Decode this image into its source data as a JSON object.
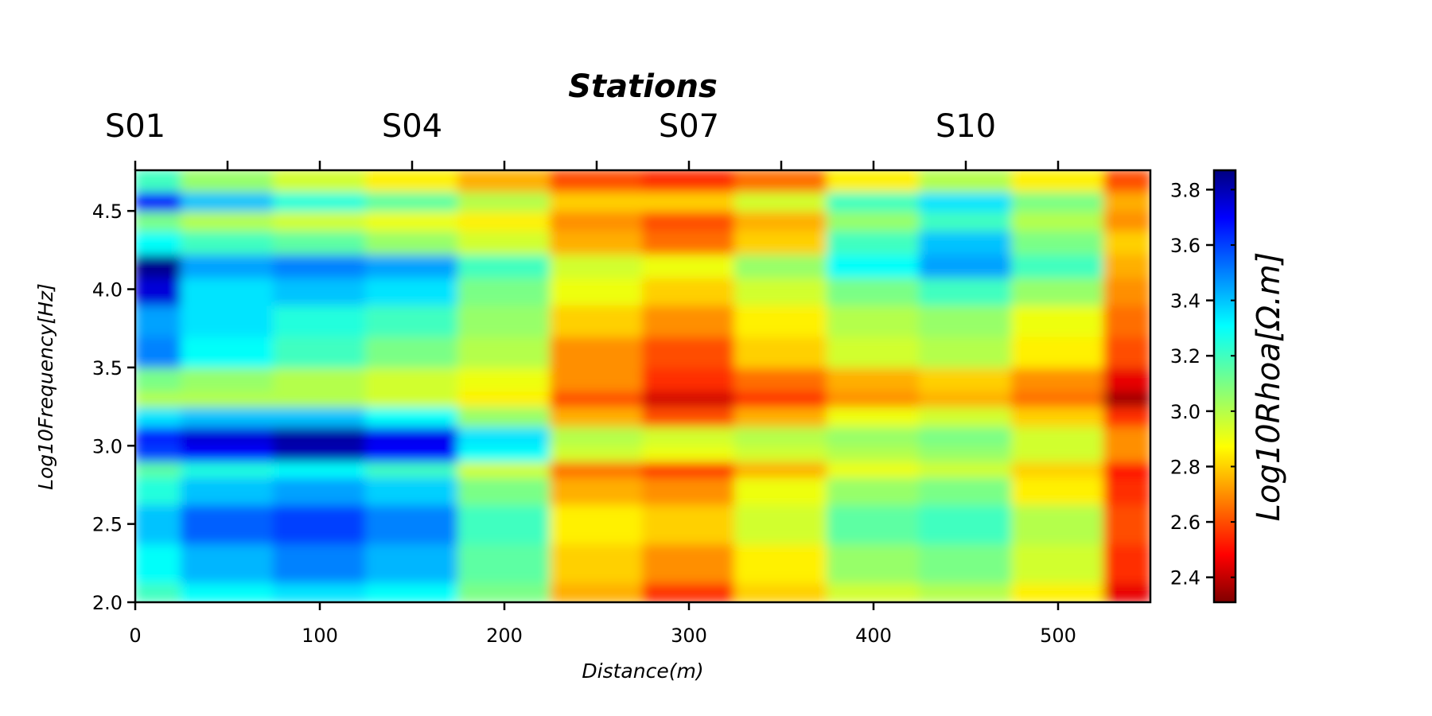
{
  "chart_data": {
    "type": "heatmap",
    "title": "Stations",
    "xlabel": "Distance(m)",
    "ylabel": "Log10Frequency[Hz]",
    "colorbar_label": "Log10Rhoa[Ω.m]",
    "xlim": [
      0,
      550
    ],
    "ylim": [
      2.0,
      4.76
    ],
    "clim": [
      2.31,
      3.87
    ],
    "colormap": "jet_reversed",
    "x_ticks": [
      0,
      100,
      200,
      300,
      400,
      500
    ],
    "y_ticks": [
      2.0,
      2.5,
      3.0,
      3.5,
      4.0,
      4.5
    ],
    "colorbar_ticks": [
      2.4,
      2.6,
      2.8,
      3.0,
      3.2,
      3.4,
      3.6,
      3.8
    ],
    "stations": [
      {
        "label": "S01",
        "x": 0
      },
      {
        "label": "S04",
        "x": 150
      },
      {
        "label": "S07",
        "x": 300
      },
      {
        "label": "S10",
        "x": 450
      }
    ],
    "station_ticks": [
      0,
      50,
      100,
      150,
      200,
      250,
      300,
      350,
      400,
      450,
      500
    ],
    "x": [
      0,
      50,
      100,
      150,
      200,
      250,
      300,
      350,
      400,
      450,
      500,
      550
    ],
    "y": [
      2.0,
      2.25,
      2.5,
      2.75,
      2.85,
      2.95,
      3.05,
      3.2,
      3.3,
      3.4,
      3.6,
      3.8,
      4.0,
      4.15,
      4.3,
      4.45,
      4.55,
      4.7
    ],
    "values": [
      [
        3.2,
        3.3,
        3.35,
        3.3,
        3.1,
        2.75,
        2.55,
        2.8,
        2.95,
        3.0,
        2.85,
        2.45
      ],
      [
        3.3,
        3.42,
        3.5,
        3.42,
        3.15,
        2.8,
        2.7,
        2.85,
        3.05,
        3.1,
        2.95,
        2.55
      ],
      [
        3.4,
        3.55,
        3.6,
        3.5,
        3.2,
        2.85,
        2.8,
        2.95,
        3.15,
        3.2,
        3.0,
        2.6
      ],
      [
        3.25,
        3.4,
        3.45,
        3.38,
        3.1,
        2.75,
        2.7,
        2.9,
        3.05,
        3.1,
        2.85,
        2.55
      ],
      [
        3.15,
        3.25,
        3.3,
        3.2,
        2.95,
        2.65,
        2.55,
        2.75,
        2.9,
        2.95,
        2.8,
        2.5
      ],
      [
        3.6,
        3.7,
        3.8,
        3.7,
        3.3,
        2.95,
        2.9,
        2.95,
        3.0,
        3.05,
        2.95,
        2.7
      ],
      [
        3.65,
        3.75,
        3.82,
        3.72,
        3.35,
        3.0,
        2.95,
        3.0,
        3.05,
        3.1,
        2.95,
        2.7
      ],
      [
        3.35,
        3.4,
        3.4,
        3.3,
        3.05,
        2.75,
        2.6,
        2.75,
        2.9,
        2.95,
        2.8,
        2.55
      ],
      [
        3.0,
        3.0,
        3.0,
        2.95,
        2.85,
        2.6,
        2.42,
        2.55,
        2.7,
        2.75,
        2.65,
        2.35
      ],
      [
        3.1,
        3.05,
        3.0,
        2.95,
        2.9,
        2.7,
        2.55,
        2.65,
        2.75,
        2.8,
        2.7,
        2.45
      ],
      [
        3.5,
        3.3,
        3.2,
        3.1,
        3.0,
        2.7,
        2.6,
        2.8,
        2.95,
        3.0,
        2.85,
        2.6
      ],
      [
        3.45,
        3.35,
        3.25,
        3.2,
        3.05,
        2.8,
        2.7,
        2.85,
        3.0,
        3.05,
        2.9,
        2.65
      ],
      [
        3.75,
        3.35,
        3.4,
        3.35,
        3.1,
        2.9,
        2.8,
        2.95,
        3.1,
        3.2,
        3.05,
        2.7
      ],
      [
        3.85,
        3.45,
        3.5,
        3.45,
        3.2,
        2.95,
        2.9,
        3.05,
        3.3,
        3.45,
        3.2,
        2.75
      ],
      [
        3.3,
        3.2,
        3.15,
        3.05,
        2.95,
        2.75,
        2.65,
        2.8,
        3.2,
        3.4,
        3.1,
        2.8
      ],
      [
        3.1,
        3.0,
        2.95,
        2.9,
        2.85,
        2.7,
        2.6,
        2.75,
        3.05,
        3.2,
        3.0,
        2.7
      ],
      [
        3.7,
        3.4,
        3.25,
        3.15,
        3.0,
        2.8,
        2.8,
        2.95,
        3.2,
        3.35,
        3.1,
        2.75
      ],
      [
        3.2,
        3.05,
        2.95,
        2.85,
        2.75,
        2.6,
        2.55,
        2.65,
        2.85,
        3.0,
        2.85,
        2.6
      ]
    ]
  }
}
